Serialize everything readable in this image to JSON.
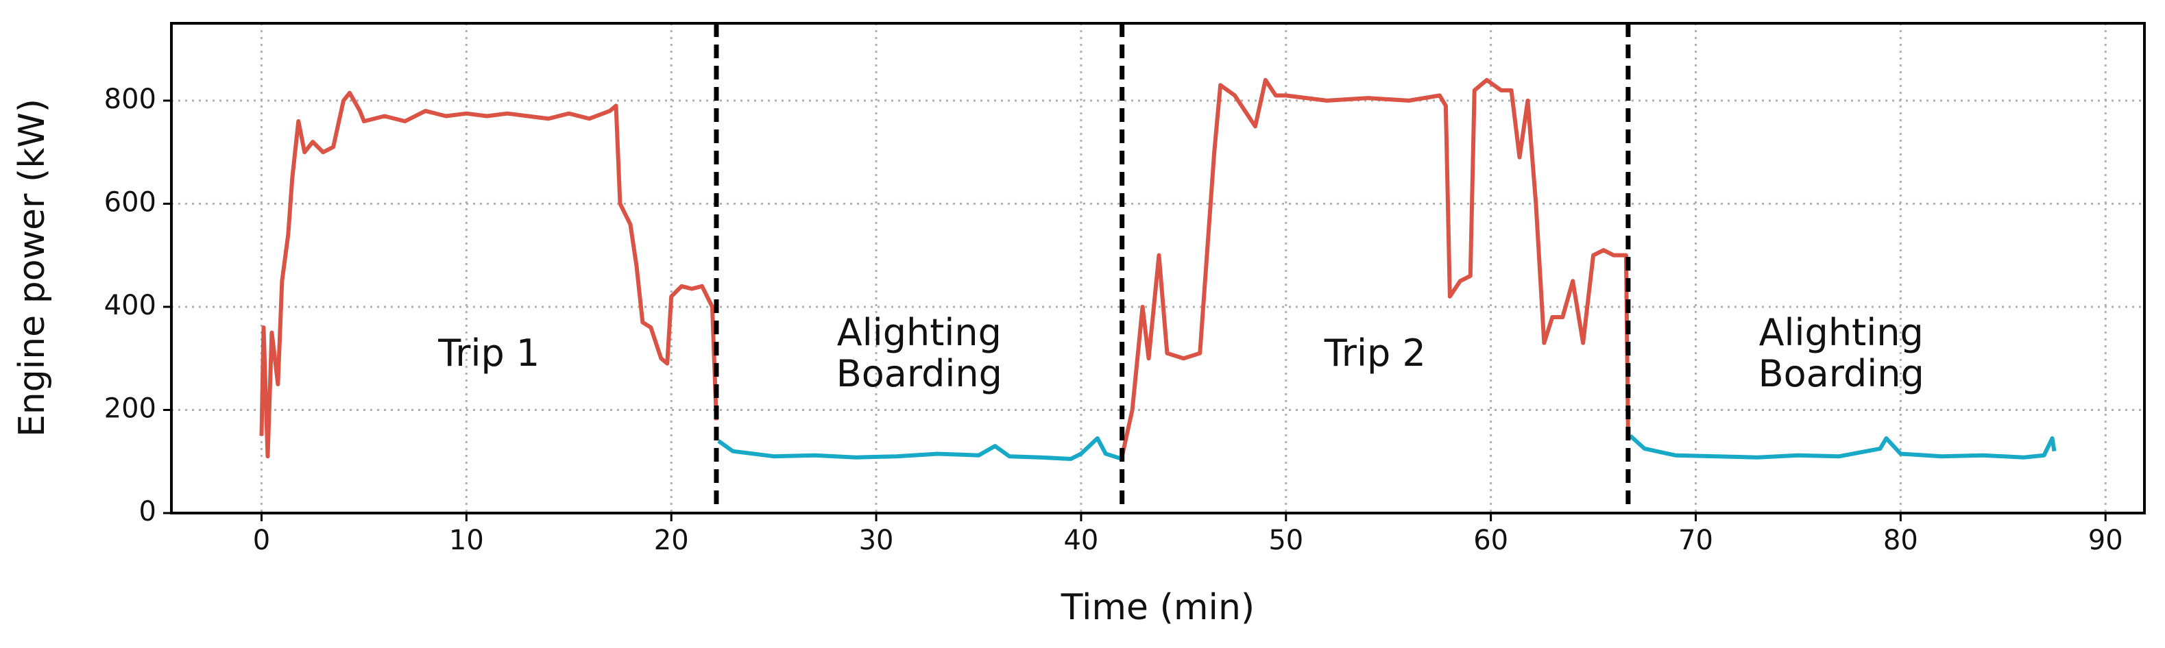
{
  "chart_data": {
    "type": "line",
    "xlabel": "Time (min)",
    "ylabel": "Engine power (kW)",
    "xlim": [
      -4.4,
      91.9
    ],
    "ylim": [
      0,
      950
    ],
    "xticks": [
      0,
      10,
      20,
      30,
      40,
      50,
      60,
      70,
      80,
      90
    ],
    "yticks": [
      0,
      200,
      400,
      600,
      800
    ],
    "grid": true,
    "vlines": [
      22.2,
      42,
      66.7
    ],
    "annotations": [
      [
        "Trip 1"
      ],
      [
        "Alighting",
        "Boarding"
      ],
      [
        "Trip 2"
      ],
      [
        "Alighting",
        "Boarding"
      ]
    ],
    "series": [
      {
        "color": "#da5344",
        "x": [
          0,
          0.1,
          0.3,
          0.5,
          0.8,
          1,
          1.3,
          1.5,
          1.8,
          2.1,
          2.5,
          3,
          3.5,
          4,
          4.3,
          4.8,
          5,
          6,
          7,
          8,
          9,
          10,
          11,
          12,
          13,
          14,
          15,
          16,
          17,
          17.3,
          17.5,
          18,
          18.3,
          18.6,
          19,
          19.5,
          19.8,
          20,
          20.5,
          21,
          21.5,
          22,
          22.2,
          32,
          42,
          42.5,
          43,
          43.3,
          43.8,
          44.2,
          45,
          45.8,
          46.5,
          46.8,
          47.5,
          48,
          48.5,
          49,
          49.5,
          50,
          52,
          54,
          56,
          57.5,
          57.8,
          58,
          58.5,
          59,
          59.2,
          59.8,
          60.5,
          61,
          61.4,
          61.8,
          62.2,
          62.6,
          63,
          63.5,
          64,
          64.5,
          65,
          65.5,
          66,
          66.6,
          66.7
        ],
        "values": [
          150,
          360,
          110,
          350,
          250,
          450,
          540,
          650,
          760,
          700,
          720,
          700,
          710,
          800,
          815,
          780,
          760,
          770,
          760,
          780,
          770,
          775,
          770,
          775,
          770,
          765,
          775,
          765,
          780,
          790,
          600,
          560,
          480,
          370,
          360,
          300,
          290,
          420,
          440,
          435,
          440,
          400,
          180,
          null,
          110,
          200,
          400,
          300,
          500,
          310,
          300,
          310,
          700,
          830,
          810,
          780,
          750,
          840,
          810,
          810,
          800,
          805,
          800,
          810,
          790,
          420,
          450,
          460,
          820,
          840,
          820,
          820,
          690,
          800,
          600,
          330,
          380,
          380,
          450,
          330,
          500,
          510,
          500,
          500,
          150
        ]
      },
      {
        "color": "#17a9c6",
        "x": [
          22.3,
          23,
          24,
          25,
          27,
          29,
          31,
          33,
          35,
          35.8,
          36.5,
          38,
          39.5,
          40,
          40.8,
          41.2,
          42,
          54,
          66.8,
          67.5,
          69,
          71,
          73,
          75,
          77,
          79,
          79.3,
          80,
          82,
          84,
          86,
          87,
          87.4,
          87.5
        ],
        "values": [
          140,
          120,
          115,
          110,
          112,
          108,
          110,
          115,
          112,
          130,
          110,
          108,
          105,
          115,
          145,
          115,
          105,
          null,
          150,
          125,
          112,
          110,
          108,
          112,
          110,
          125,
          145,
          115,
          110,
          112,
          108,
          112,
          145,
          120
        ]
      }
    ]
  }
}
